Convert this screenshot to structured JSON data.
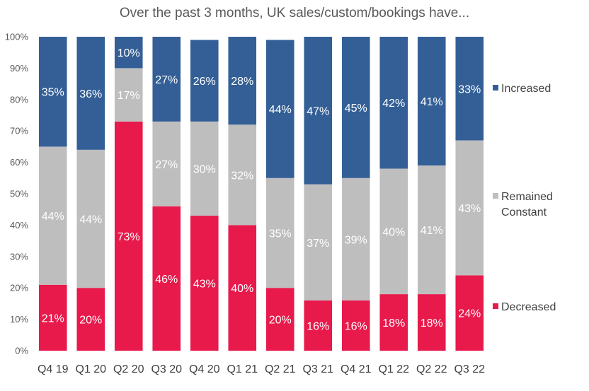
{
  "chart_data": {
    "type": "bar",
    "stacked": true,
    "title": "Over the past 3 months, UK sales/custom/bookings have...",
    "categories": [
      "Q4 19",
      "Q1 20",
      "Q2 20",
      "Q3 20",
      "Q4 20",
      "Q1 21",
      "Q2 21",
      "Q3 21",
      "Q4 21",
      "Q1 22",
      "Q2 22",
      "Q3 22"
    ],
    "ylim": [
      0,
      100
    ],
    "yticks": [
      "0%",
      "10%",
      "20%",
      "30%",
      "40%",
      "50%",
      "60%",
      "70%",
      "80%",
      "90%",
      "100%"
    ],
    "grid": false,
    "legend_position": "right",
    "series": [
      {
        "name": "Decreased",
        "color": "#E8194B",
        "values": [
          21,
          20,
          73,
          46,
          43,
          40,
          20,
          16,
          16,
          18,
          18,
          24
        ],
        "labels": [
          "21%",
          "20%",
          "73%",
          "46%",
          "43%",
          "40%",
          "20%",
          "16%",
          "16%",
          "18%",
          "18%",
          "24%"
        ]
      },
      {
        "name": "Remained Constant",
        "color": "#BFBEBF",
        "values": [
          44,
          44,
          17,
          27,
          30,
          32,
          35,
          37,
          39,
          40,
          41,
          43
        ],
        "labels": [
          "44%",
          "44%",
          "17%",
          "27%",
          "30%",
          "32%",
          "35%",
          "37%",
          "39%",
          "40%",
          "41%",
          "43%"
        ]
      },
      {
        "name": "Increased",
        "color": "#335F96",
        "values": [
          35,
          36,
          10,
          27,
          26,
          28,
          44,
          47,
          45,
          42,
          41,
          33
        ],
        "labels": [
          "35%",
          "36%",
          "10%",
          "27%",
          "26%",
          "28%",
          "44%",
          "47%",
          "45%",
          "42%",
          "41%",
          "33%"
        ]
      }
    ],
    "legend": [
      {
        "lines": [
          "Increased"
        ],
        "series": 2
      },
      {
        "lines": [
          "Remained",
          "Constant"
        ],
        "series": 1
      },
      {
        "lines": [
          "Decreased"
        ],
        "series": 0
      }
    ]
  }
}
